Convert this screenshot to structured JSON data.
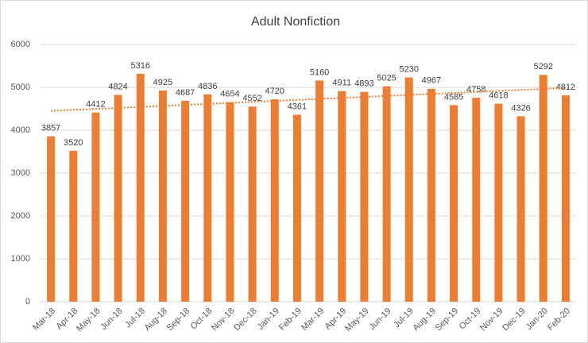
{
  "chart_data": {
    "type": "bar",
    "title": "Adult Nonfiction",
    "categories": [
      "Mar-18",
      "Apr-18",
      "May-18",
      "Jun-18",
      "Jul-18",
      "Aug-18",
      "Sep-18",
      "Oct-18",
      "Nov-18",
      "Dec-18",
      "Jan-19",
      "Feb-19",
      "Mar-19",
      "Apr-19",
      "May-19",
      "Jun-19",
      "Jul-19",
      "Aug-19",
      "Sep-19",
      "Oct-19",
      "Nov-19",
      "Dec-19",
      "Jan-20",
      "Feb-20"
    ],
    "values": [
      3857,
      3520,
      4412,
      4824,
      5316,
      4925,
      4687,
      4836,
      4654,
      4552,
      4720,
      4361,
      5160,
      4911,
      4893,
      5025,
      5230,
      4967,
      4585,
      4758,
      4618,
      4326,
      5292,
      4812
    ],
    "color": "#ed7d31",
    "trendline": "linear",
    "ylim": [
      0,
      6000
    ],
    "yticks": [
      0,
      1000,
      2000,
      3000,
      4000,
      5000,
      6000
    ],
    "grid": true
  }
}
